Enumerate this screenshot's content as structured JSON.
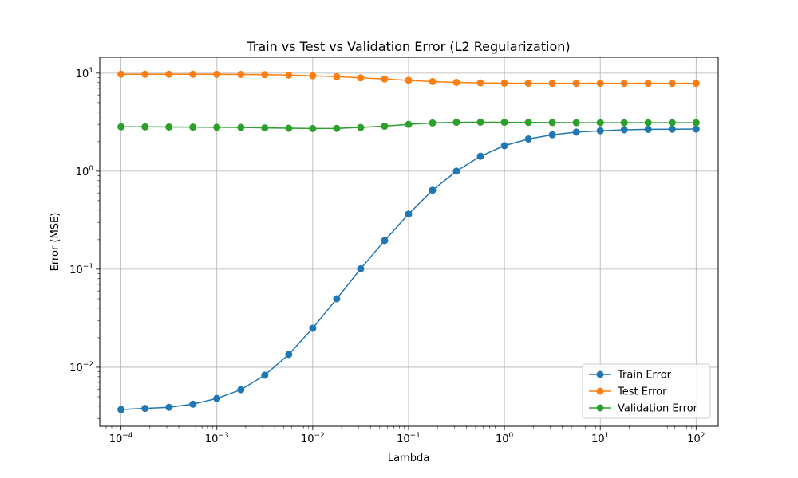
{
  "chart_data": {
    "type": "line",
    "title": "Train vs Test vs Validation Error (L2 Regularization)",
    "xlabel": "Lambda",
    "ylabel": "Error (MSE)",
    "xscale": "log",
    "yscale": "log",
    "xlim": [
      6e-05,
      170
    ],
    "ylim": [
      0.0025,
      14.5
    ],
    "grid": true,
    "legend_position": "lower-right",
    "x_ticks": [
      {
        "base": "10",
        "exp": "−4",
        "value": 0.0001
      },
      {
        "base": "10",
        "exp": "−3",
        "value": 0.001
      },
      {
        "base": "10",
        "exp": "−2",
        "value": 0.01
      },
      {
        "base": "10",
        "exp": "−1",
        "value": 0.1
      },
      {
        "base": "10",
        "exp": "0",
        "value": 1
      },
      {
        "base": "10",
        "exp": "1",
        "value": 10
      },
      {
        "base": "10",
        "exp": "2",
        "value": 100
      }
    ],
    "y_ticks": [
      {
        "base": "10",
        "exp": "−2",
        "value": 0.01
      },
      {
        "base": "10",
        "exp": "−1",
        "value": 0.1
      },
      {
        "base": "10",
        "exp": "0",
        "value": 1
      },
      {
        "base": "10",
        "exp": "1",
        "value": 10
      }
    ],
    "x": [
      0.0001,
      0.000178,
      0.000316,
      0.000562,
      0.001,
      0.00178,
      0.00316,
      0.00562,
      0.01,
      0.0178,
      0.0316,
      0.0562,
      0.1,
      0.178,
      0.316,
      0.562,
      1,
      1.78,
      3.16,
      5.62,
      10,
      17.8,
      31.6,
      56.2,
      100
    ],
    "series": [
      {
        "name": "Train Error",
        "color": "#1f77b4",
        "values": [
          0.0037,
          0.0038,
          0.0039,
          0.0042,
          0.0048,
          0.0059,
          0.0083,
          0.0135,
          0.025,
          0.05,
          0.101,
          0.196,
          0.365,
          0.64,
          1.0,
          1.42,
          1.82,
          2.13,
          2.35,
          2.5,
          2.58,
          2.64,
          2.67,
          2.68,
          2.69
        ]
      },
      {
        "name": "Test Error",
        "color": "#ff7f0e",
        "values": [
          9.75,
          9.75,
          9.74,
          9.74,
          9.73,
          9.7,
          9.65,
          9.55,
          9.4,
          9.2,
          8.95,
          8.7,
          8.45,
          8.2,
          8.05,
          7.95,
          7.9,
          7.88,
          7.87,
          7.87,
          7.87,
          7.87,
          7.87,
          7.87,
          7.87
        ]
      },
      {
        "name": "Validation Error",
        "color": "#2ca02c",
        "values": [
          2.83,
          2.83,
          2.82,
          2.81,
          2.8,
          2.79,
          2.76,
          2.74,
          2.72,
          2.73,
          2.79,
          2.87,
          3.0,
          3.1,
          3.15,
          3.16,
          3.15,
          3.14,
          3.13,
          3.12,
          3.12,
          3.12,
          3.12,
          3.12,
          3.12
        ]
      }
    ]
  }
}
